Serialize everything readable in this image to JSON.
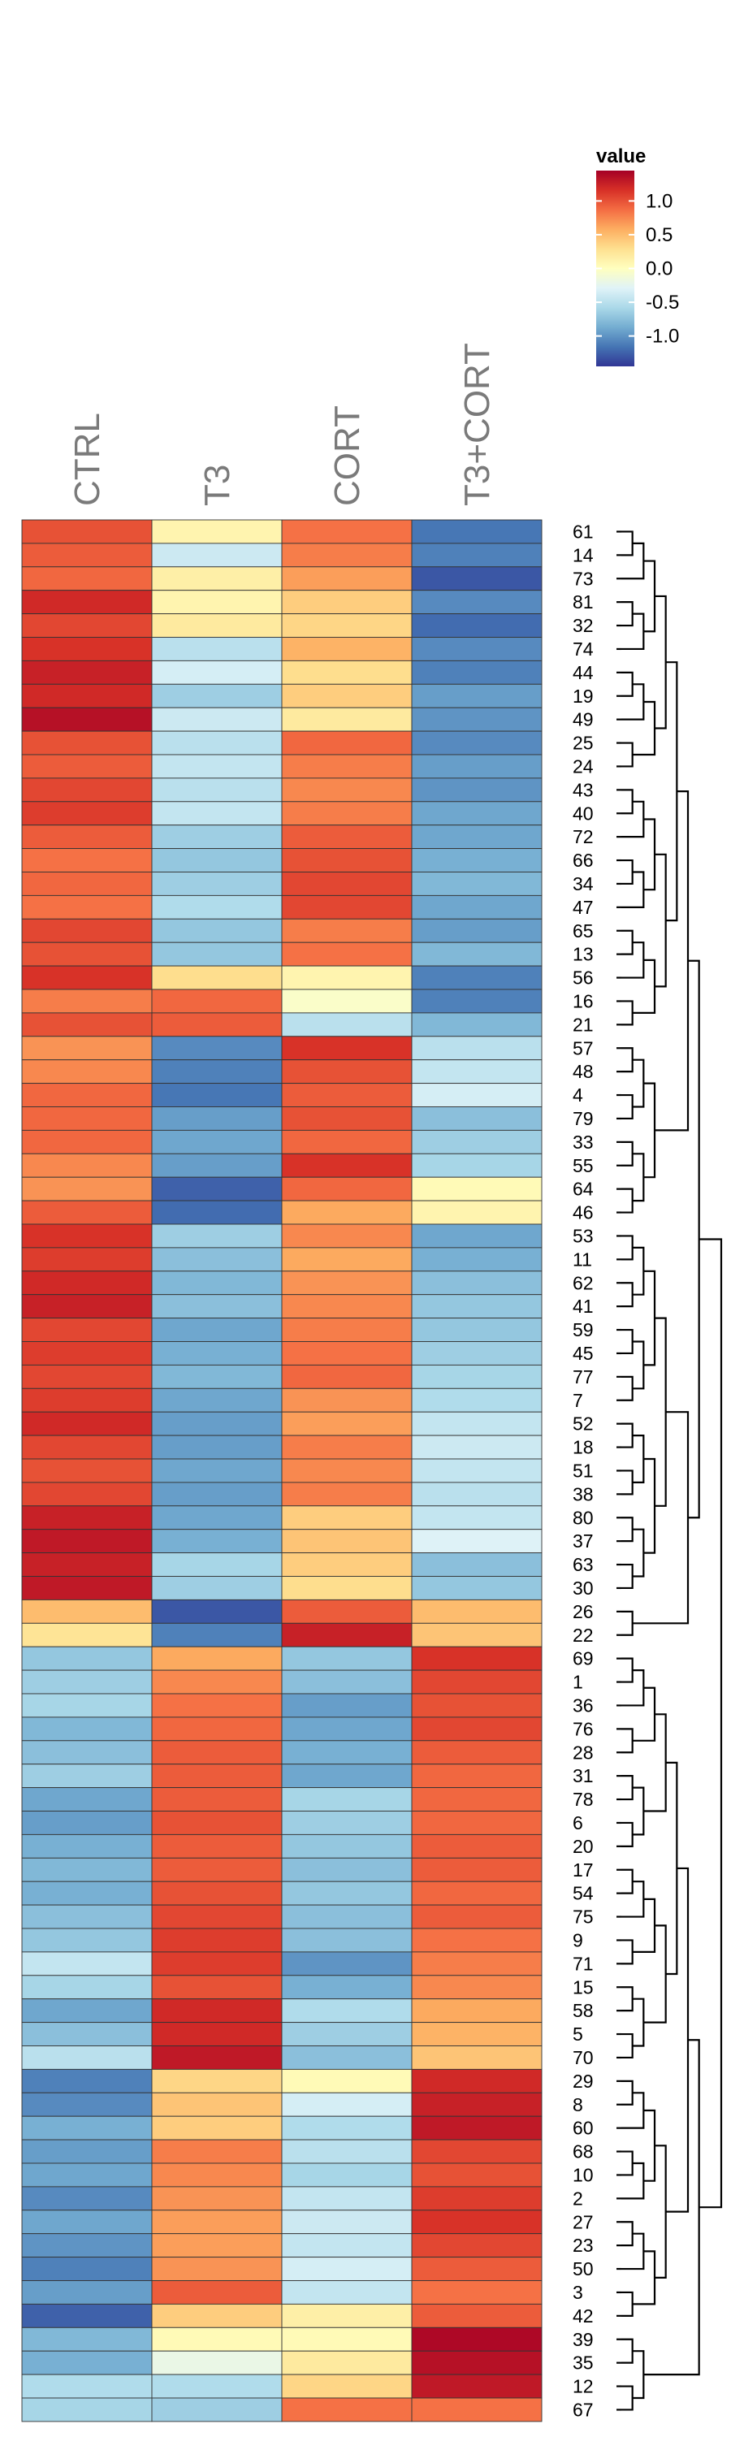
{
  "chart_data": {
    "type": "heatmap",
    "title": "",
    "xlabel": "",
    "ylabel": "",
    "columns": [
      "CTRL",
      "T3",
      "CORT",
      "T3+CORT"
    ],
    "rows": [
      "61",
      "14",
      "73",
      "81",
      "32",
      "74",
      "44",
      "19",
      "49",
      "25",
      "24",
      "43",
      "40",
      "72",
      "66",
      "34",
      "47",
      "65",
      "13",
      "56",
      "16",
      "21",
      "57",
      "48",
      "4",
      "79",
      "33",
      "55",
      "64",
      "46",
      "53",
      "11",
      "62",
      "41",
      "59",
      "45",
      "77",
      "7",
      "52",
      "18",
      "51",
      "38",
      "80",
      "37",
      "63",
      "30",
      "26",
      "22",
      "69",
      "1",
      "36",
      "76",
      "28",
      "31",
      "78",
      "6",
      "20",
      "17",
      "54",
      "75",
      "9",
      "71",
      "15",
      "58",
      "5",
      "70",
      "29",
      "8",
      "60",
      "68",
      "10",
      "2",
      "27",
      "23",
      "50",
      "3",
      "42",
      "39",
      "35",
      "12",
      "67"
    ],
    "values": [
      [
        1.0,
        0.1,
        0.85,
        -1.15
      ],
      [
        0.95,
        -0.4,
        0.8,
        -1.1
      ],
      [
        0.9,
        0.15,
        0.65,
        -1.3
      ],
      [
        1.2,
        0.1,
        0.4,
        -1.05
      ],
      [
        1.05,
        0.2,
        0.35,
        -1.2
      ],
      [
        1.15,
        -0.5,
        0.55,
        -1.05
      ],
      [
        1.25,
        -0.35,
        0.3,
        -1.1
      ],
      [
        1.2,
        -0.65,
        0.4,
        -0.95
      ],
      [
        1.35,
        -0.4,
        0.2,
        -1.0
      ],
      [
        1.0,
        -0.5,
        0.9,
        -1.05
      ],
      [
        0.95,
        -0.45,
        0.8,
        -0.95
      ],
      [
        1.05,
        -0.5,
        0.75,
        -1.0
      ],
      [
        1.1,
        -0.45,
        0.8,
        -0.9
      ],
      [
        0.95,
        -0.65,
        0.95,
        -0.9
      ],
      [
        0.85,
        -0.7,
        1.0,
        -0.85
      ],
      [
        0.9,
        -0.65,
        1.05,
        -0.8
      ],
      [
        0.85,
        -0.55,
        1.05,
        -0.9
      ],
      [
        1.05,
        -0.7,
        0.8,
        -0.95
      ],
      [
        1.0,
        -0.7,
        0.85,
        -0.8
      ],
      [
        1.15,
        0.3,
        0.1,
        -1.1
      ],
      [
        0.8,
        0.9,
        -0.05,
        -1.1
      ],
      [
        1.0,
        0.95,
        -0.5,
        -0.8
      ],
      [
        0.7,
        -1.05,
        1.15,
        -0.5
      ],
      [
        0.75,
        -1.1,
        1.0,
        -0.45
      ],
      [
        0.9,
        -1.15,
        0.95,
        -0.35
      ],
      [
        0.9,
        -0.95,
        1.0,
        -0.75
      ],
      [
        0.9,
        -0.9,
        0.9,
        -0.65
      ],
      [
        0.75,
        -0.95,
        1.15,
        -0.6
      ],
      [
        0.7,
        -1.25,
        0.9,
        0.05
      ],
      [
        0.95,
        -1.2,
        0.6,
        0.1
      ],
      [
        1.15,
        -0.65,
        0.75,
        -0.9
      ],
      [
        1.1,
        -0.75,
        0.6,
        -0.85
      ],
      [
        1.2,
        -0.8,
        0.7,
        -0.75
      ],
      [
        1.25,
        -0.75,
        0.75,
        -0.7
      ],
      [
        1.05,
        -0.9,
        0.8,
        -0.7
      ],
      [
        1.1,
        -0.85,
        0.85,
        -0.65
      ],
      [
        1.05,
        -0.8,
        0.9,
        -0.6
      ],
      [
        1.1,
        -0.9,
        0.7,
        -0.55
      ],
      [
        1.2,
        -0.95,
        0.65,
        -0.45
      ],
      [
        1.05,
        -0.95,
        0.8,
        -0.4
      ],
      [
        1.0,
        -0.9,
        0.75,
        -0.45
      ],
      [
        1.05,
        -0.95,
        0.8,
        -0.5
      ],
      [
        1.25,
        -0.9,
        0.4,
        -0.45
      ],
      [
        1.3,
        -0.85,
        0.45,
        -0.3
      ],
      [
        1.25,
        -0.6,
        0.4,
        -0.75
      ],
      [
        1.3,
        -0.65,
        0.3,
        -0.7
      ],
      [
        0.5,
        -1.3,
        0.95,
        0.5
      ],
      [
        0.25,
        -1.1,
        1.25,
        0.45
      ],
      [
        -0.7,
        0.6,
        -0.7,
        1.15
      ],
      [
        -0.65,
        0.75,
        -0.75,
        1.05
      ],
      [
        -0.6,
        0.85,
        -0.95,
        1.0
      ],
      [
        -0.8,
        0.9,
        -0.9,
        1.05
      ],
      [
        -0.75,
        0.95,
        -0.85,
        0.95
      ],
      [
        -0.65,
        0.95,
        -0.9,
        0.9
      ],
      [
        -0.9,
        0.95,
        -0.6,
        0.9
      ],
      [
        -0.95,
        1.0,
        -0.65,
        0.9
      ],
      [
        -0.85,
        0.95,
        -0.7,
        0.95
      ],
      [
        -0.8,
        0.95,
        -0.75,
        0.95
      ],
      [
        -0.85,
        1.0,
        -0.7,
        0.9
      ],
      [
        -0.75,
        1.05,
        -0.75,
        0.95
      ],
      [
        -0.7,
        1.1,
        -0.75,
        0.85
      ],
      [
        -0.45,
        1.1,
        -1.0,
        0.8
      ],
      [
        -0.6,
        1.0,
        -0.85,
        0.75
      ],
      [
        -0.9,
        1.2,
        -0.55,
        0.6
      ],
      [
        -0.75,
        1.2,
        -0.65,
        0.55
      ],
      [
        -0.5,
        1.3,
        -0.75,
        0.45
      ],
      [
        -1.1,
        0.35,
        0.05,
        1.2
      ],
      [
        -1.05,
        0.45,
        -0.35,
        1.25
      ],
      [
        -0.85,
        0.4,
        -0.55,
        1.3
      ],
      [
        -0.95,
        0.8,
        -0.5,
        1.05
      ],
      [
        -0.9,
        0.75,
        -0.6,
        1.0
      ],
      [
        -1.05,
        0.7,
        -0.45,
        1.1
      ],
      [
        -0.9,
        0.65,
        -0.4,
        1.15
      ],
      [
        -1.0,
        0.65,
        -0.45,
        1.05
      ],
      [
        -1.1,
        0.7,
        -0.35,
        0.95
      ],
      [
        -0.95,
        0.95,
        -0.45,
        0.85
      ],
      [
        -1.25,
        0.4,
        0.15,
        0.95
      ],
      [
        -0.8,
        0.05,
        0.05,
        1.4
      ],
      [
        -0.85,
        -0.2,
        0.2,
        1.35
      ],
      [
        -0.55,
        -0.55,
        0.35,
        1.3
      ],
      [
        -0.6,
        -0.65,
        0.85,
        0.85
      ]
    ],
    "legend": {
      "title": "value",
      "ticks": [
        "1.0",
        "0.5",
        "0.0",
        "-0.5",
        "-1.0"
      ],
      "tick_values": [
        1.0,
        0.5,
        0.0,
        -0.5,
        -1.0
      ],
      "range": [
        -1.45,
        1.45
      ],
      "placement": "top-right"
    },
    "color_scale": [
      "#313695",
      "#4575b4",
      "#74add1",
      "#abd9e9",
      "#e0f3f8",
      "#ffffbf",
      "#fee090",
      "#fdae61",
      "#f46d43",
      "#d73027",
      "#a50026"
    ],
    "dendrogram": "rows, right side",
    "grid": false
  }
}
